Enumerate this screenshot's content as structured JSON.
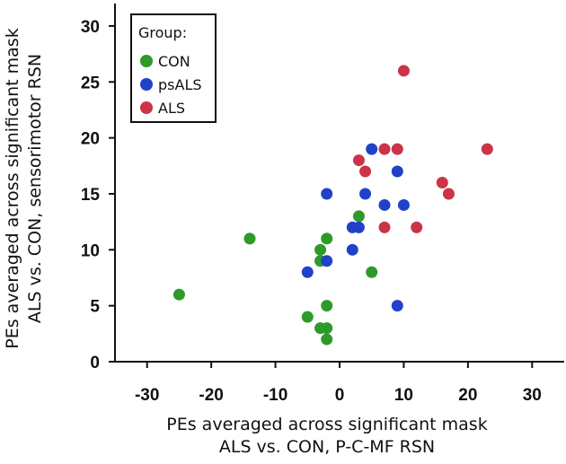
{
  "chart_data": {
    "type": "scatter",
    "xlabel_lines": [
      "PEs averaged across significant mask",
      "ALS vs. CON, P-C-MF RSN"
    ],
    "ylabel_lines": [
      "PEs averaged across significant mask",
      "ALS vs. CON, sensorimotor RSN"
    ],
    "xlim": [
      -35,
      35
    ],
    "ylim": [
      0,
      32
    ],
    "xticks": [
      -30,
      -20,
      -10,
      0,
      10,
      20,
      30
    ],
    "yticks": [
      0,
      5,
      10,
      15,
      20,
      25,
      30
    ],
    "grid": false,
    "legend": {
      "title": "Group:",
      "position": "top-left"
    },
    "series": [
      {
        "name": "CON",
        "color": "#2e9a2a",
        "points": [
          [
            -25,
            6
          ],
          [
            -14,
            11
          ],
          [
            -5,
            4
          ],
          [
            -3,
            3
          ],
          [
            -3,
            10
          ],
          [
            -3,
            9
          ],
          [
            -2,
            11
          ],
          [
            -2,
            5
          ],
          [
            -2,
            3
          ],
          [
            -2,
            2
          ],
          [
            3,
            13
          ],
          [
            5,
            8
          ]
        ]
      },
      {
        "name": "psALS",
        "color": "#2142c8",
        "points": [
          [
            -5,
            8
          ],
          [
            -2,
            15
          ],
          [
            -2,
            9
          ],
          [
            2,
            12
          ],
          [
            2,
            10
          ],
          [
            3,
            12
          ],
          [
            4,
            15
          ],
          [
            5,
            19
          ],
          [
            7,
            14
          ],
          [
            9,
            17
          ],
          [
            10,
            14
          ],
          [
            9,
            5
          ]
        ]
      },
      {
        "name": "ALS",
        "color": "#cc3347",
        "points": [
          [
            3,
            18
          ],
          [
            4,
            17
          ],
          [
            7,
            19
          ],
          [
            9,
            19
          ],
          [
            7,
            12
          ],
          [
            10,
            26
          ],
          [
            12,
            12
          ],
          [
            16,
            16
          ],
          [
            17,
            15
          ],
          [
            23,
            19
          ]
        ]
      }
    ]
  }
}
